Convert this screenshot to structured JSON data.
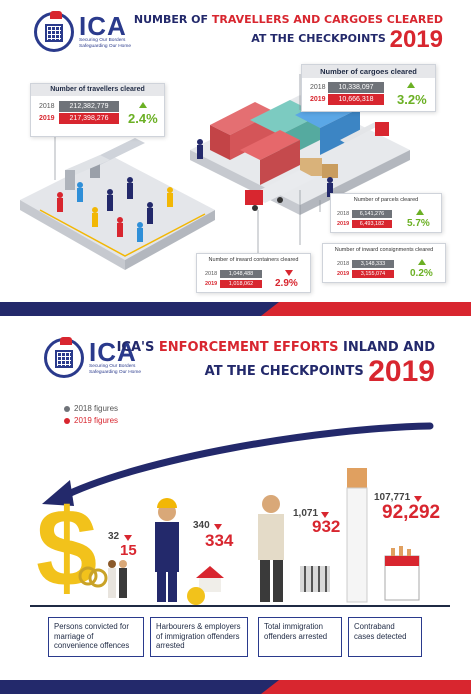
{
  "top": {
    "logo": {
      "brand": "ICA",
      "tagline_1": "Securing Our Borders",
      "tagline_2": "Safeguarding Our Home"
    },
    "headline": {
      "line1_pre": "NUMBER OF ",
      "line1_red": "TRAVELLERS AND CARGOES CLEARED",
      "line2": "AT THE CHECKPOINTS",
      "year": "2019"
    },
    "travellers": {
      "title": "Number of travellers cleared",
      "y2018": "2018",
      "v2018": "212,382,779",
      "y2019": "2019",
      "v2019": "217,398,276",
      "change": "2.4%"
    },
    "cargoes": {
      "title": "Number of cargoes cleared",
      "y2018": "2018",
      "v2018": "10,338,097",
      "y2019": "2019",
      "v2019": "10,666,318",
      "change": "3.2%"
    },
    "parcels": {
      "title": "Number of parcels cleared",
      "y2018": "2018",
      "v2018": "6,141,276",
      "y2019": "2019",
      "v2019": "6,493,182",
      "change": "5.7%"
    },
    "consignments": {
      "title": "Number of inward consignments cleared",
      "y2018": "2018",
      "v2018": "3,148,333",
      "y2019": "2019",
      "v2019": "3,155,074",
      "change": "0.2%"
    },
    "containers": {
      "title": "Number of inward containers cleared",
      "y2018": "2018",
      "v2018": "1,048,488",
      "y2019": "2019",
      "v2019": "1,018,062",
      "change": "2.9%"
    }
  },
  "bottom": {
    "logo": {
      "brand": "ICA",
      "tagline_1": "Securing Our Borders",
      "tagline_2": "Safeguarding Our Home"
    },
    "headline": {
      "line1_pre": "ICA'S ",
      "line1_red": "ENFORCEMENT EFFORTS",
      "line1_post": " INLAND AND",
      "line2": "AT THE CHECKPOINTS",
      "year": "2019"
    },
    "legend": {
      "label_2018": "2018 figures",
      "label_2019": "2019 figures",
      "color_2018": "#6f7379",
      "color_2019": "#d8262f"
    },
    "items": [
      {
        "v2018": "32",
        "v2019": "15",
        "caption": "Persons convicted for marriage of convenience offences"
      },
      {
        "v2018": "340",
        "v2019": "334",
        "caption": "Harbourers & employers of immigration offenders arrested"
      },
      {
        "v2018": "1,071",
        "v2019": "932",
        "caption": "Total immigration offenders arrested"
      },
      {
        "v2018": "107,771",
        "v2019": "92,292",
        "caption": "Contraband cases detected"
      }
    ]
  },
  "colors": {
    "navy": "#23296b",
    "red": "#d8262f",
    "green": "#6bb024",
    "grey": "#6f7379"
  },
  "icons": [
    "ica-crest-icon",
    "dollar-sign-icon",
    "wedding-rings-icon",
    "handcuffs-icon",
    "house-icon",
    "money-bag-icon",
    "jail-cell-icon",
    "cigarette-icon",
    "cigarette-pack-icon",
    "curved-arrow-icon"
  ]
}
